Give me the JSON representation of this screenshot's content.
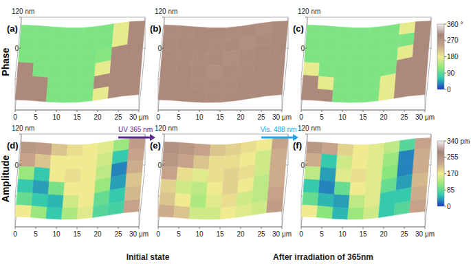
{
  "chart_data": [
    {
      "type": "surface",
      "ylabel": "Phase",
      "xlim": [
        0,
        30
      ],
      "xticks": [
        0,
        5,
        10,
        15,
        20,
        25,
        {
          "value": 30,
          "label": "30 μm"
        }
      ],
      "ylim": [
        0,
        30
      ],
      "zlim": [
        0,
        120
      ],
      "zticks": [
        0,
        {
          "value": 120,
          "label": "120 nm"
        }
      ],
      "clim": [
        0,
        360
      ],
      "cticks": [
        0,
        90,
        180,
        270,
        {
          "value": 360,
          "label": "360 °"
        }
      ],
      "colors": [
        "#1838c8",
        "#30c8b0",
        "#8ee87a",
        "#f0ea90",
        "#c8a48c",
        "#a58478",
        "#f6f0f2"
      ],
      "panels": [
        {
          "title": "(a)",
          "cells": [
            [
              110,
              110,
              110,
              110,
              110,
              110,
              175,
              290
            ],
            [
              110,
              110,
              110,
              110,
              110,
              110,
              175,
              290
            ],
            [
              110,
              110,
              110,
              110,
              110,
              115,
              290,
              290
            ],
            [
              290,
              110,
              110,
              110,
              110,
              175,
              290,
              290
            ],
            [
              290,
              290,
              110,
              110,
              110,
              290,
              290,
              290
            ],
            [
              290,
              290,
              110,
              110,
              110,
              175,
              290,
              290
            ]
          ]
        },
        {
          "title": "(b)",
          "cells": [
            [
              285,
              285,
              290,
              290,
              285,
              285,
              280,
              290
            ],
            [
              285,
              290,
              290,
              285,
              285,
              280,
              285,
              290
            ],
            [
              290,
              285,
              285,
              285,
              280,
              285,
              290,
              290
            ],
            [
              290,
              290,
              285,
              280,
              285,
              285,
              290,
              290
            ],
            [
              290,
              290,
              285,
              285,
              285,
              290,
              290,
              290
            ],
            [
              290,
              290,
              290,
              285,
              285,
              290,
              290,
              290
            ]
          ]
        },
        {
          "title": "(c)",
          "cells": [
            [
              110,
              110,
              110,
              110,
              110,
              110,
              175,
              290
            ],
            [
              110,
              110,
              110,
              110,
              110,
              110,
              110,
              290
            ],
            [
              110,
              110,
              110,
              110,
              110,
              110,
              175,
              290
            ],
            [
              175,
              110,
              110,
              110,
              110,
              110,
              290,
              290
            ],
            [
              290,
              175,
              110,
              110,
              110,
              175,
              290,
              290
            ],
            [
              290,
              290,
              110,
              110,
              110,
              175,
              290,
              290
            ]
          ]
        }
      ]
    },
    {
      "type": "surface",
      "ylabel": "Amplitude",
      "xlim": [
        0,
        30
      ],
      "xticks": [
        0,
        5,
        10,
        15,
        20,
        25,
        {
          "value": 30,
          "label": "30 μm"
        }
      ],
      "ylim": [
        0,
        30
      ],
      "zlim": [
        0,
        120
      ],
      "zticks": [
        0,
        {
          "value": 120,
          "label": "120 nm"
        }
      ],
      "clim": [
        0,
        340
      ],
      "cticks": [
        0,
        85,
        170,
        255,
        {
          "value": 340,
          "label": "340 pm"
        }
      ],
      "colors": [
        "#1838c8",
        "#30c8b0",
        "#8ee87a",
        "#f0ea90",
        "#c8a48c",
        "#a58478",
        "#f6f0f2"
      ],
      "panels": [
        {
          "title": "(d)",
          "cells": [
            [
              250,
              240,
              200,
              180,
              170,
              160,
              120,
              240
            ],
            [
              230,
              200,
              170,
              170,
              170,
              150,
              60,
              230
            ],
            [
              120,
              60,
              170,
              180,
              170,
              140,
              30,
              220
            ],
            [
              60,
              40,
              100,
              170,
              170,
              120,
              40,
              200
            ],
            [
              90,
              60,
              50,
              150,
              170,
              90,
              60,
              210
            ],
            [
              170,
              120,
              60,
              130,
              160,
              80,
              70,
              230
            ]
          ]
        },
        {
          "title": "(e)",
          "cells": [
            [
              260,
              250,
              230,
              200,
              190,
              180,
              170,
              230
            ],
            [
              250,
              230,
              200,
              180,
              180,
              170,
              150,
              220
            ],
            [
              230,
              180,
              160,
              180,
              190,
              180,
              150,
              220
            ],
            [
              190,
              150,
              140,
              170,
              190,
              170,
              140,
              220
            ],
            [
              200,
              170,
              130,
              160,
              180,
              150,
              140,
              230
            ],
            [
              220,
              200,
              150,
              150,
              170,
              160,
              150,
              240
            ]
          ]
        },
        {
          "title": "(f)",
          "cells": [
            [
              250,
              230,
              190,
              170,
              160,
              140,
              80,
              230
            ],
            [
              220,
              60,
              150,
              170,
              160,
              120,
              30,
              220
            ],
            [
              140,
              40,
              160,
              180,
              160,
              110,
              30,
              220
            ],
            [
              60,
              30,
              90,
              170,
              160,
              90,
              40,
              210
            ],
            [
              90,
              50,
              40,
              140,
              160,
              60,
              60,
              220
            ],
            [
              170,
              110,
              50,
              120,
              150,
              60,
              80,
              230
            ]
          ]
        }
      ]
    }
  ],
  "topography": [
    [
      90,
      85,
      80,
      78,
      80,
      90,
      100,
      105
    ],
    [
      80,
      75,
      70,
      68,
      72,
      80,
      95,
      100
    ],
    [
      70,
      62,
      58,
      56,
      60,
      70,
      85,
      95
    ],
    [
      60,
      52,
      48,
      45,
      50,
      60,
      75,
      85
    ],
    [
      50,
      42,
      38,
      36,
      40,
      50,
      62,
      72
    ],
    [
      40,
      34,
      30,
      28,
      32,
      40,
      50,
      60
    ]
  ],
  "arrows": [
    {
      "label": "UV 365 nm",
      "color": "#5b2a91"
    },
    {
      "label": "Vis. 488 nm",
      "color": "#22a6e6"
    }
  ],
  "captions": [
    "Initial state",
    "After irradiation of 365nm"
  ]
}
